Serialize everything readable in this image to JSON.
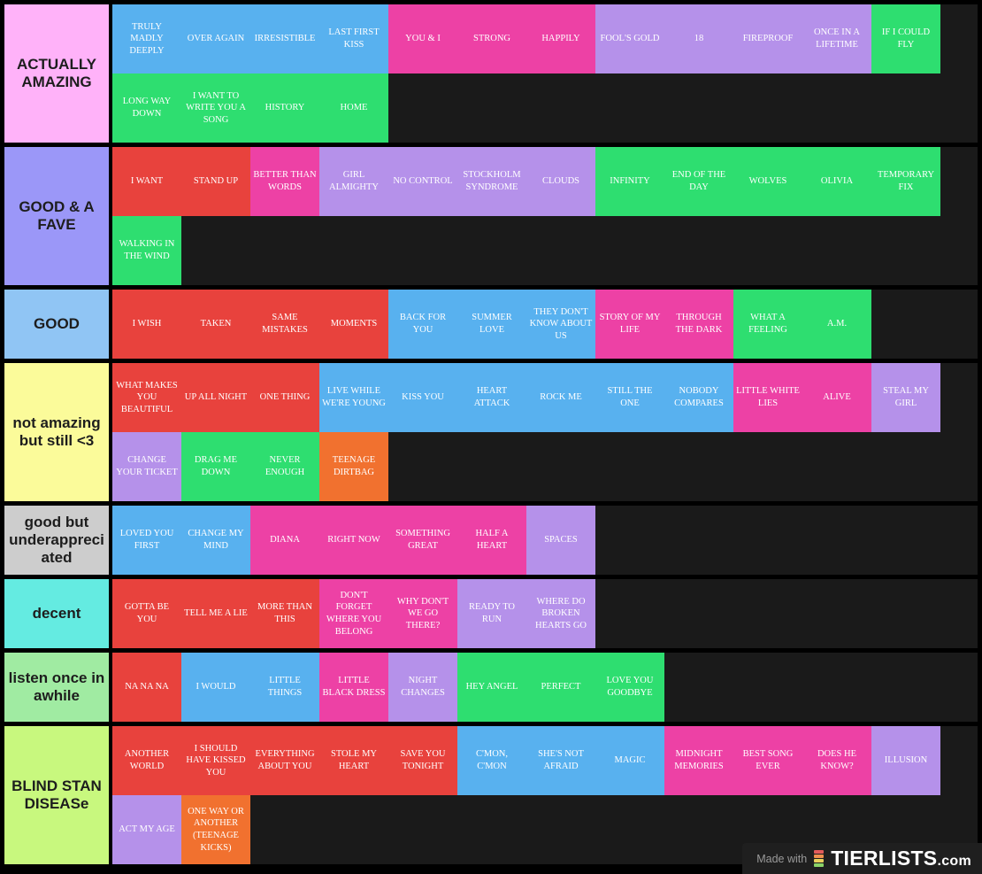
{
  "page": {
    "background": "#000000",
    "row_area_background": "#1a1a1a"
  },
  "tile_colors": {
    "red": "#e8423d",
    "blue": "#58b1ef",
    "pink": "#ed41a5",
    "purple": "#b591ea",
    "green": "#2ede70",
    "orange": "#f1712f"
  },
  "watermark": {
    "made_with": "Made with",
    "brand": "TIERLISTS",
    "suffix": ".com",
    "icon_bar_colors": [
      "#e25b5b",
      "#f0904f",
      "#e8d05c",
      "#8bd468"
    ]
  },
  "tiers": [
    {
      "label": "ACTUALLY AMAZING",
      "color": "#ffb2f9",
      "songs": [
        {
          "title": "TRULY MADLY DEEPLY",
          "color": "blue"
        },
        {
          "title": "OVER AGAIN",
          "color": "blue"
        },
        {
          "title": "IRRESISTIBLE",
          "color": "blue"
        },
        {
          "title": "LAST FIRST KISS",
          "color": "blue"
        },
        {
          "title": "YOU & I",
          "color": "pink"
        },
        {
          "title": "STRONG",
          "color": "pink"
        },
        {
          "title": "HAPPILY",
          "color": "pink"
        },
        {
          "title": "FOOL'S GOLD",
          "color": "purple"
        },
        {
          "title": "18",
          "color": "purple"
        },
        {
          "title": "FIREPROOF",
          "color": "purple"
        },
        {
          "title": "ONCE IN A LIFETIME",
          "color": "purple"
        },
        {
          "title": "IF I COULD FLY",
          "color": "green"
        },
        {
          "title": "LONG WAY DOWN",
          "color": "green"
        },
        {
          "title": "I WANT TO WRITE YOU A SONG",
          "color": "green"
        },
        {
          "title": "HISTORY",
          "color": "green"
        },
        {
          "title": "HOME",
          "color": "green"
        }
      ]
    },
    {
      "label": "GOOD & A FAVE",
      "color": "#9b97f8",
      "songs": [
        {
          "title": "I WANT",
          "color": "red"
        },
        {
          "title": "STAND UP",
          "color": "red"
        },
        {
          "title": "BETTER THAN WORDS",
          "color": "pink"
        },
        {
          "title": "GIRL ALMIGHTY",
          "color": "purple"
        },
        {
          "title": "NO CONTROL",
          "color": "purple"
        },
        {
          "title": "STOCKHOLM SYNDROME",
          "color": "purple"
        },
        {
          "title": "CLOUDS",
          "color": "purple"
        },
        {
          "title": "INFINITY",
          "color": "green"
        },
        {
          "title": "END OF THE DAY",
          "color": "green"
        },
        {
          "title": "WOLVES",
          "color": "green"
        },
        {
          "title": "OLIVIA",
          "color": "green"
        },
        {
          "title": "TEMPORARY FIX",
          "color": "green"
        },
        {
          "title": "WALKING IN THE WIND",
          "color": "green"
        }
      ]
    },
    {
      "label": "GOOD",
      "color": "#90c5f4",
      "songs": [
        {
          "title": "I WISH",
          "color": "red"
        },
        {
          "title": "TAKEN",
          "color": "red"
        },
        {
          "title": "SAME MISTAKES",
          "color": "red"
        },
        {
          "title": "MOMENTS",
          "color": "red"
        },
        {
          "title": "BACK FOR YOU",
          "color": "blue"
        },
        {
          "title": "SUMMER LOVE",
          "color": "blue"
        },
        {
          "title": "THEY DON'T KNOW ABOUT US",
          "color": "blue"
        },
        {
          "title": "STORY OF MY LIFE",
          "color": "pink"
        },
        {
          "title": "THROUGH THE DARK",
          "color": "pink"
        },
        {
          "title": "WHAT A FEELING",
          "color": "green"
        },
        {
          "title": "A.M.",
          "color": "green"
        }
      ]
    },
    {
      "label": "not amazing but still <3",
      "color": "#fbfb9a",
      "songs": [
        {
          "title": "WHAT MAKES YOU BEAUTIFUL",
          "color": "red"
        },
        {
          "title": "UP ALL NIGHT",
          "color": "red"
        },
        {
          "title": "ONE THING",
          "color": "red"
        },
        {
          "title": "LIVE WHILE WE'RE YOUNG",
          "color": "blue"
        },
        {
          "title": "KISS YOU",
          "color": "blue"
        },
        {
          "title": "HEART ATTACK",
          "color": "blue"
        },
        {
          "title": "ROCK ME",
          "color": "blue"
        },
        {
          "title": "STILL THE ONE",
          "color": "blue"
        },
        {
          "title": "NOBODY COMPARES",
          "color": "blue"
        },
        {
          "title": "LITTLE WHITE LIES",
          "color": "pink"
        },
        {
          "title": "ALIVE",
          "color": "pink"
        },
        {
          "title": "STEAL MY GIRL",
          "color": "purple"
        },
        {
          "title": "CHANGE YOUR TICKET",
          "color": "purple"
        },
        {
          "title": "DRAG ME DOWN",
          "color": "green"
        },
        {
          "title": "NEVER ENOUGH",
          "color": "green"
        },
        {
          "title": "TEENAGE DIRTBAG",
          "color": "orange"
        }
      ]
    },
    {
      "label": "good but underappreciated",
      "color": "#cdcdcd",
      "songs": [
        {
          "title": "LOVED YOU FIRST",
          "color": "blue"
        },
        {
          "title": "CHANGE MY MIND",
          "color": "blue"
        },
        {
          "title": "DIANA",
          "color": "pink"
        },
        {
          "title": "RIGHT NOW",
          "color": "pink"
        },
        {
          "title": "SOMETHING GREAT",
          "color": "pink"
        },
        {
          "title": "HALF A HEART",
          "color": "pink"
        },
        {
          "title": "SPACES",
          "color": "purple"
        }
      ]
    },
    {
      "label": "decent",
      "color": "#64ebe1",
      "songs": [
        {
          "title": "GOTTA BE YOU",
          "color": "red"
        },
        {
          "title": "TELL ME A LIE",
          "color": "red"
        },
        {
          "title": "MORE THAN THIS",
          "color": "red"
        },
        {
          "title": "DON'T FORGET WHERE YOU BELONG",
          "color": "pink"
        },
        {
          "title": "WHY DON'T WE GO THERE?",
          "color": "pink"
        },
        {
          "title": "READY TO RUN",
          "color": "purple"
        },
        {
          "title": "WHERE DO BROKEN HEARTS GO",
          "color": "purple"
        }
      ]
    },
    {
      "label": "listen once in awhile",
      "color": "#a0eba2",
      "songs": [
        {
          "title": "NA NA NA",
          "color": "red"
        },
        {
          "title": "I WOULD",
          "color": "blue"
        },
        {
          "title": "LITTLE THINGS",
          "color": "blue"
        },
        {
          "title": "LITTLE BLACK DRESS",
          "color": "pink"
        },
        {
          "title": "NIGHT CHANGES",
          "color": "purple"
        },
        {
          "title": "HEY ANGEL",
          "color": "green"
        },
        {
          "title": "PERFECT",
          "color": "green"
        },
        {
          "title": "LOVE YOU GOODBYE",
          "color": "green"
        }
      ]
    },
    {
      "label": "BLIND STAN DISEASe",
      "color": "#c8f87e",
      "songs": [
        {
          "title": "ANOTHER WORLD",
          "color": "red"
        },
        {
          "title": "I SHOULD HAVE KISSED YOU",
          "color": "red"
        },
        {
          "title": "EVERYTHING ABOUT YOU",
          "color": "red"
        },
        {
          "title": "STOLE MY HEART",
          "color": "red"
        },
        {
          "title": "SAVE YOU TONIGHT",
          "color": "red"
        },
        {
          "title": "C'MON, C'MON",
          "color": "blue"
        },
        {
          "title": "SHE'S NOT AFRAID",
          "color": "blue"
        },
        {
          "title": "MAGIC",
          "color": "blue"
        },
        {
          "title": "MIDNIGHT MEMORIES",
          "color": "pink"
        },
        {
          "title": "BEST SONG EVER",
          "color": "pink"
        },
        {
          "title": "DOES HE KNOW?",
          "color": "pink"
        },
        {
          "title": "ILLUSION",
          "color": "purple"
        },
        {
          "title": "ACT MY AGE",
          "color": "purple"
        },
        {
          "title": "ONE WAY OR ANOTHER (TEENAGE KICKS)",
          "color": "orange"
        }
      ]
    }
  ]
}
